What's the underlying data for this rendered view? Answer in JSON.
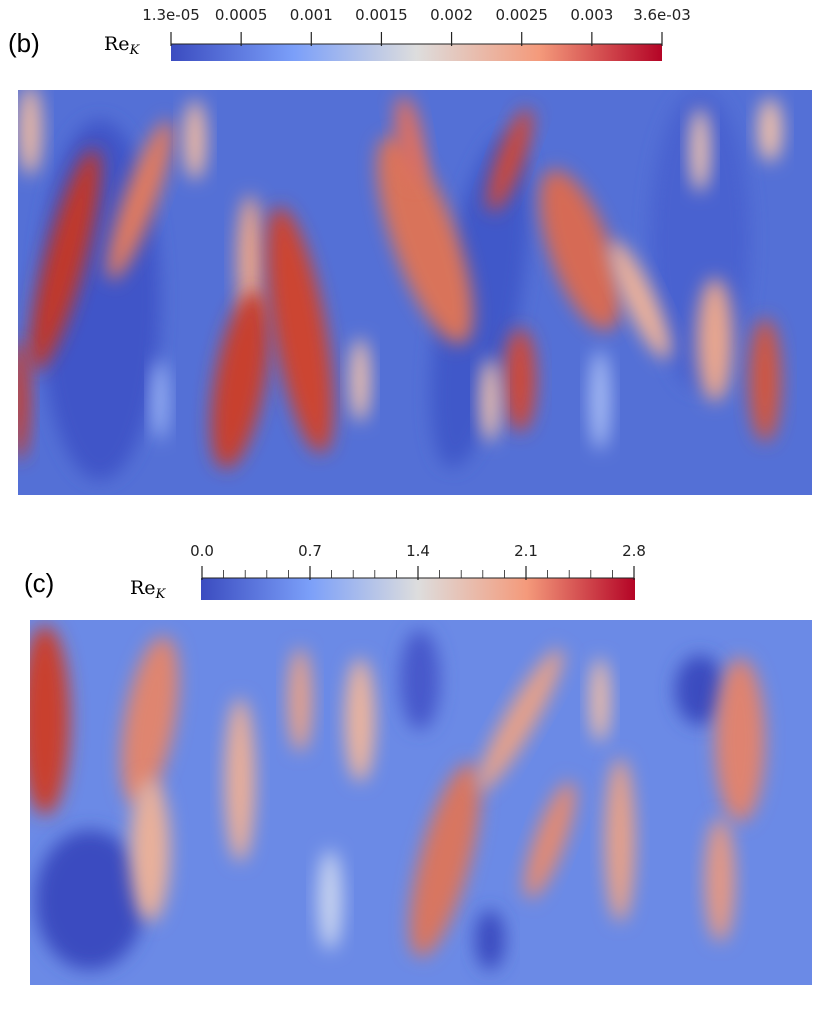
{
  "panels": [
    {
      "label": "(b)",
      "colorbar": {
        "title": "Re",
        "subscript": "K",
        "ticks": [
          "1.3e-05",
          "0.0005",
          "0.001",
          "0.0015",
          "0.002",
          "0.0025",
          "0.003",
          "3.6e-03"
        ]
      }
    },
    {
      "label": "(c)",
      "colorbar": {
        "title": "Re",
        "subscript": "K",
        "ticks": [
          "0.0",
          "0.7",
          "1.4",
          "2.1",
          "2.8"
        ]
      }
    }
  ]
}
